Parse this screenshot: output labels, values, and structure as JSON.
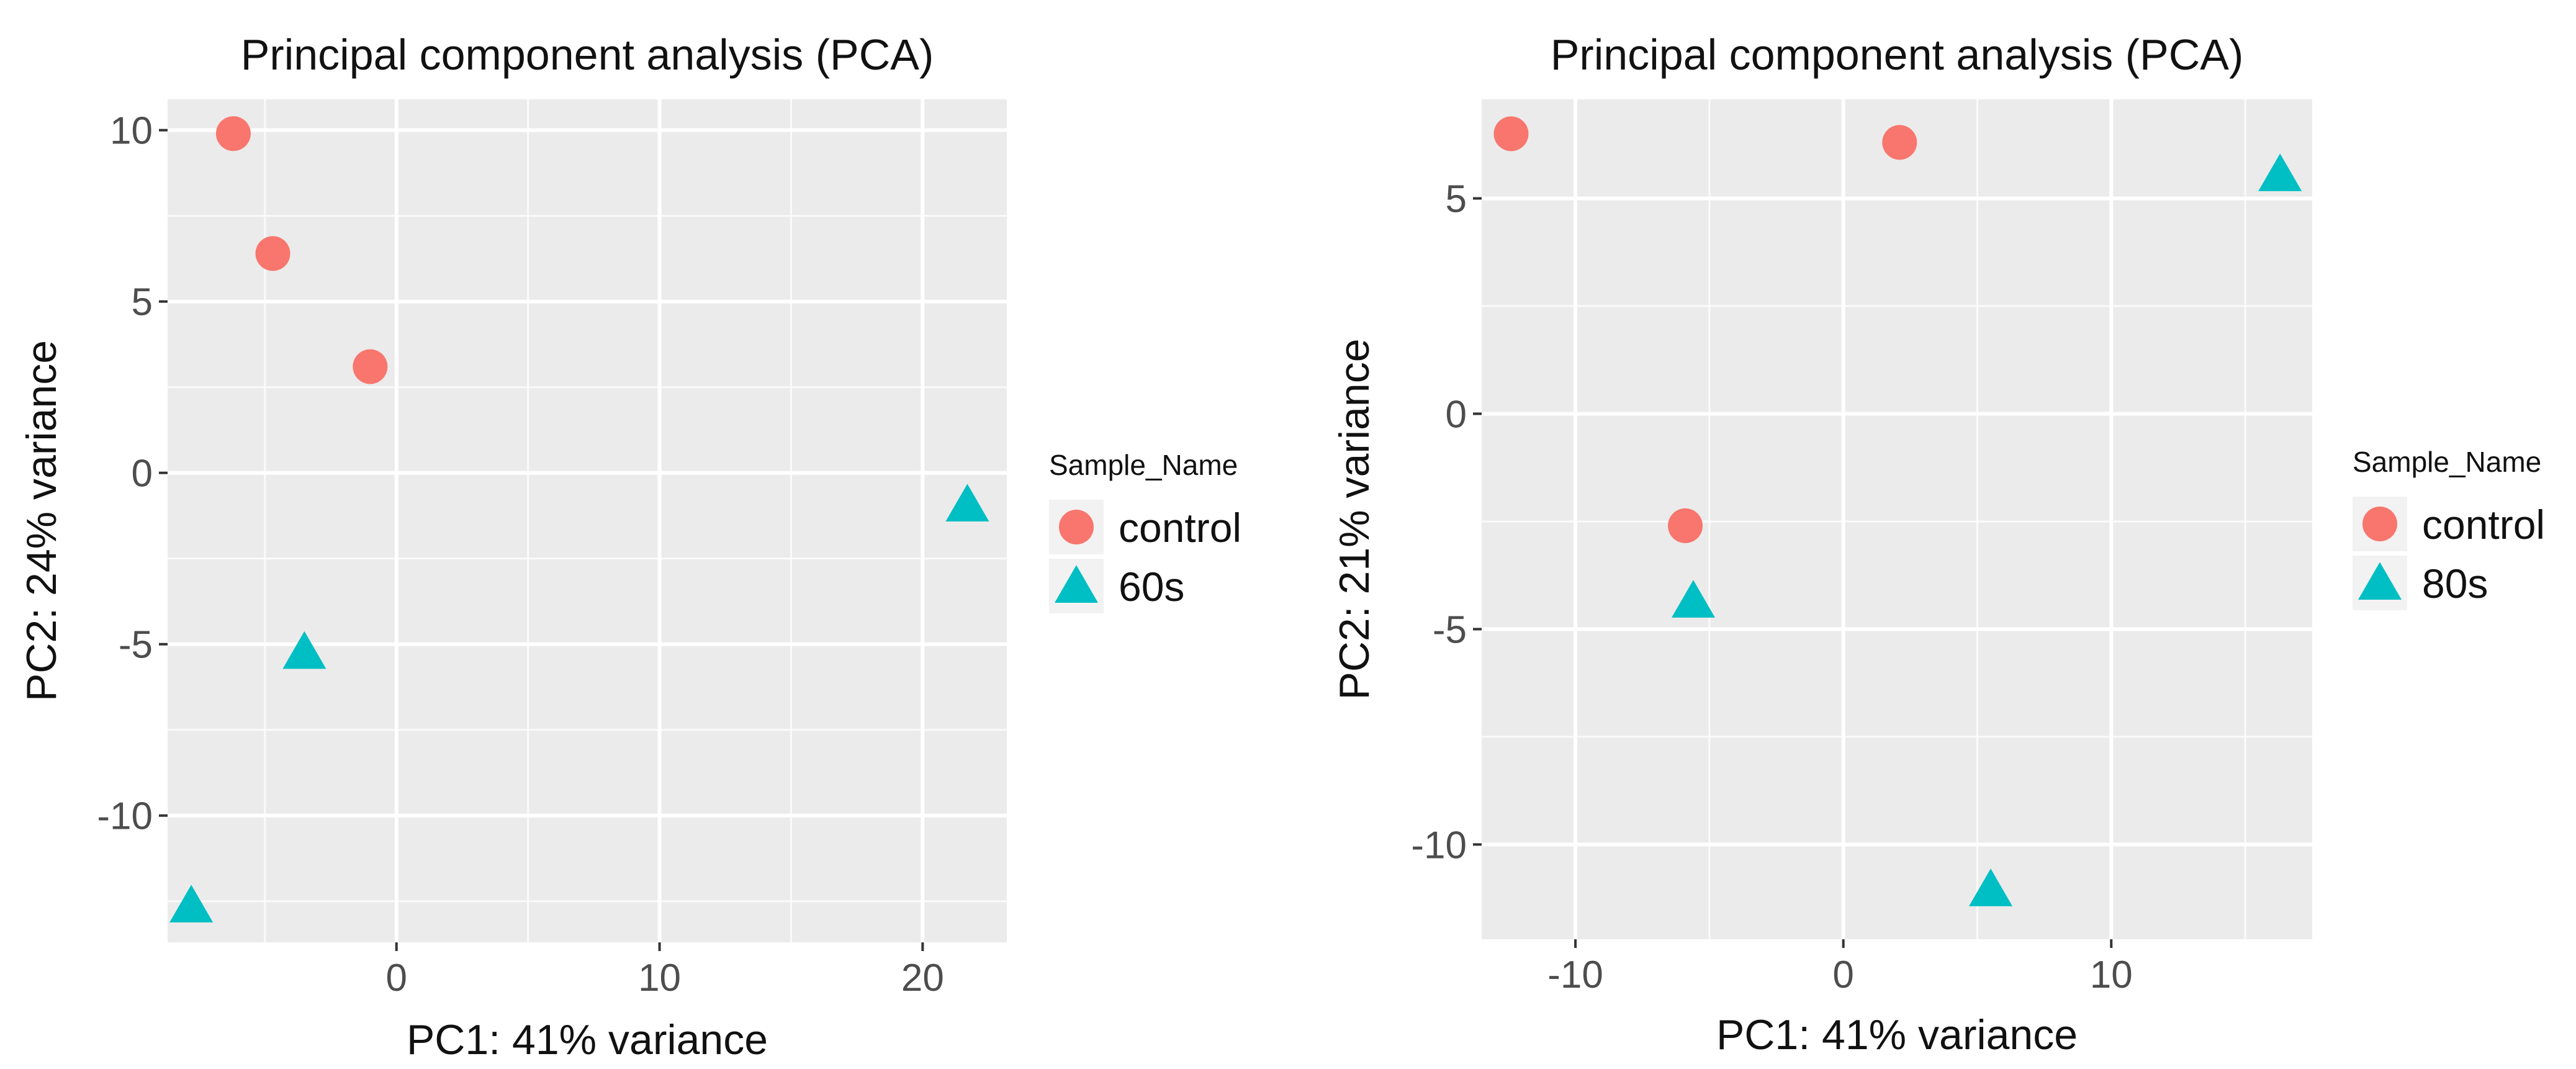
{
  "figure": "Two PCA scatter plots",
  "colors": {
    "control": "#F8766D",
    "treated": "#00BFC4",
    "panel_bg": "#EBEBEB",
    "grid": "#FFFFFF"
  },
  "chart_data": [
    {
      "type": "scatter",
      "title": "Principal component analysis (PCA)",
      "xlabel": "PC1: 41% variance",
      "ylabel": "PC2: 24% variance",
      "xlim": [
        -8.7,
        23.2
      ],
      "ylim": [
        -13.7,
        10.9
      ],
      "xticks": [
        0,
        10,
        20
      ],
      "xtick_labels": [
        "0",
        "10",
        "20"
      ],
      "yticks": [
        -10,
        -5,
        0,
        5,
        10
      ],
      "ytick_labels": [
        "-10",
        "-5",
        "0",
        "5",
        "10"
      ],
      "grid": true,
      "legend": {
        "title": "Sample_Name",
        "position": "right"
      },
      "series": [
        {
          "name": "control",
          "marker": "circle",
          "color": "#F8766D",
          "points": [
            [
              -6.2,
              9.9
            ],
            [
              -4.7,
              6.4
            ],
            [
              -1.0,
              3.1
            ]
          ]
        },
        {
          "name": "60s",
          "marker": "triangle",
          "color": "#00BFC4",
          "points": [
            [
              21.7,
              -1.0
            ],
            [
              -3.5,
              -5.3
            ],
            [
              -7.8,
              -12.7
            ]
          ]
        }
      ]
    },
    {
      "type": "scatter",
      "title": "Principal component analysis (PCA)",
      "xlabel": "PC1: 41% variance",
      "ylabel": "PC2: 21% variance",
      "xlim": [
        -13.5,
        17.5
      ],
      "ylim": [
        -12.2,
        7.3
      ],
      "xticks": [
        -10,
        0,
        10
      ],
      "xtick_labels": [
        "-10",
        "0",
        "10"
      ],
      "yticks": [
        -10,
        -5,
        0,
        5
      ],
      "ytick_labels": [
        "-10",
        "-5",
        "0",
        "5"
      ],
      "grid": true,
      "legend": {
        "title": "Sample_Name",
        "position": "right"
      },
      "series": [
        {
          "name": "control",
          "marker": "circle",
          "color": "#F8766D",
          "points": [
            [
              -12.4,
              6.5
            ],
            [
              2.1,
              6.3
            ],
            [
              -5.9,
              -2.6
            ]
          ]
        },
        {
          "name": "80s",
          "marker": "triangle",
          "color": "#00BFC4",
          "points": [
            [
              16.3,
              5.5
            ],
            [
              -5.6,
              -4.4
            ],
            [
              5.5,
              -11.1
            ]
          ]
        }
      ]
    }
  ]
}
